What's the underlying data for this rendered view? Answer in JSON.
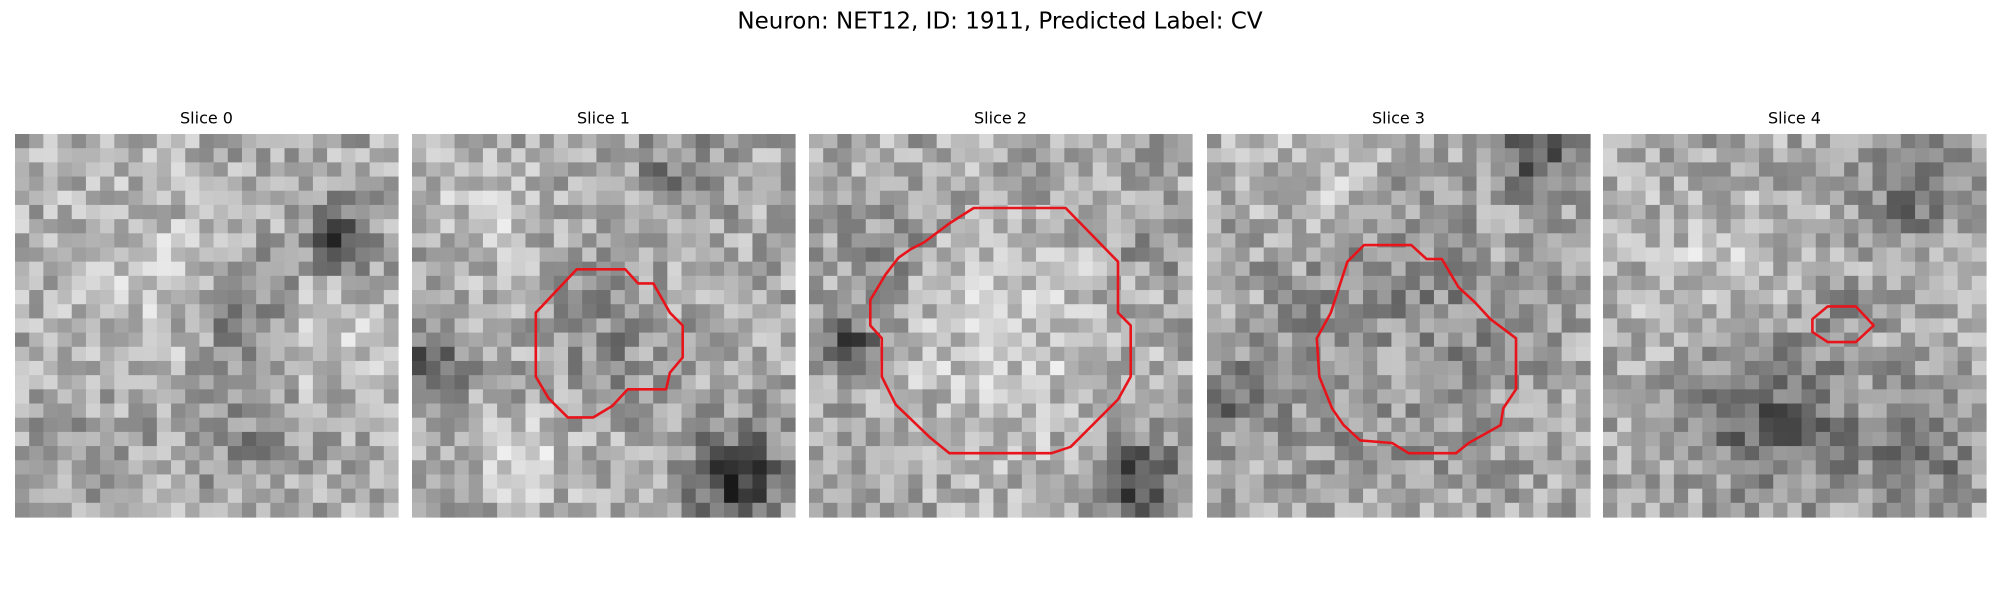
{
  "header": {
    "title": "Neuron: NET12, ID: 1911, Predicted Label: CV"
  },
  "panels": [
    {
      "title": "Slice 0"
    },
    {
      "title": "Slice 1"
    },
    {
      "title": "Slice 2"
    },
    {
      "title": "Slice 3"
    },
    {
      "title": "Slice 4"
    }
  ]
}
